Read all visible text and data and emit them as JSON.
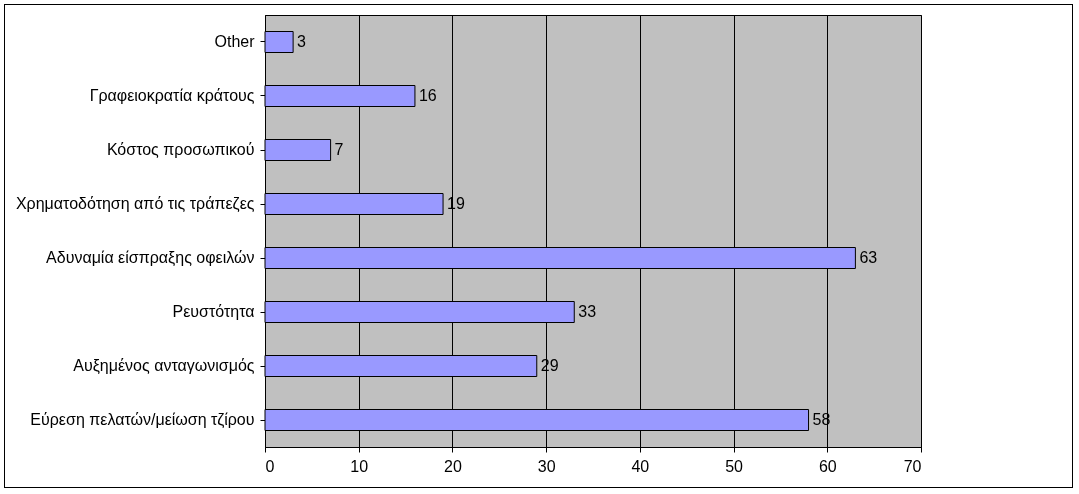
{
  "chart_data": {
    "type": "bar",
    "orientation": "horizontal",
    "categories": [
      "Other",
      "Γραφειοκρατία κράτους",
      "Κόστος προσωπικού",
      "Χρηματοδότηση από τις τράπεζες",
      "Αδυναμία είσπραξης οφειλών",
      "Ρευστότητα",
      "Αυξημένος ανταγωνισμός",
      "Εύρεση πελατών/μείωση τζίρου"
    ],
    "values": [
      3,
      16,
      7,
      19,
      63,
      33,
      29,
      58
    ],
    "color": "#9999ff",
    "xlim": [
      0,
      70
    ],
    "xticks": [
      0,
      10,
      20,
      30,
      40,
      50,
      60,
      70
    ],
    "grid": "x",
    "data_labels": true
  }
}
